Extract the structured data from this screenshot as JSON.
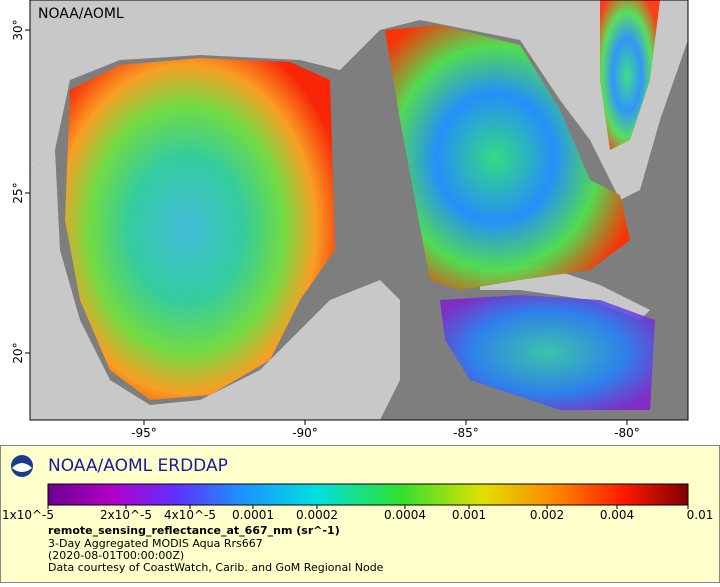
{
  "map": {
    "watermark": "NOAA/AOML",
    "x_ticks": [
      "-95°",
      "-90°",
      "-85°",
      "-80°"
    ],
    "y_ticks": [
      "30°",
      "25°",
      "20°"
    ]
  },
  "legend": {
    "title": "NOAA/AOML ERDDAP",
    "colorbar_labels": [
      "1x10^-5",
      "2x10^-5",
      "4x10^-5",
      "0.0001",
      "0.0002",
      "0.0004",
      "0.001",
      "0.002",
      "0.004",
      "0.01"
    ],
    "variable": "remote_sensing_reflectance_at_667_nm (sr^-1)",
    "lines": [
      "3-Day Aggregated MODIS Aqua Rrs667",
      "(2020-08-01T00:00:00Z)",
      "Data courtesy of CoastWatch, Carib. and GoM Regional Node"
    ]
  }
}
